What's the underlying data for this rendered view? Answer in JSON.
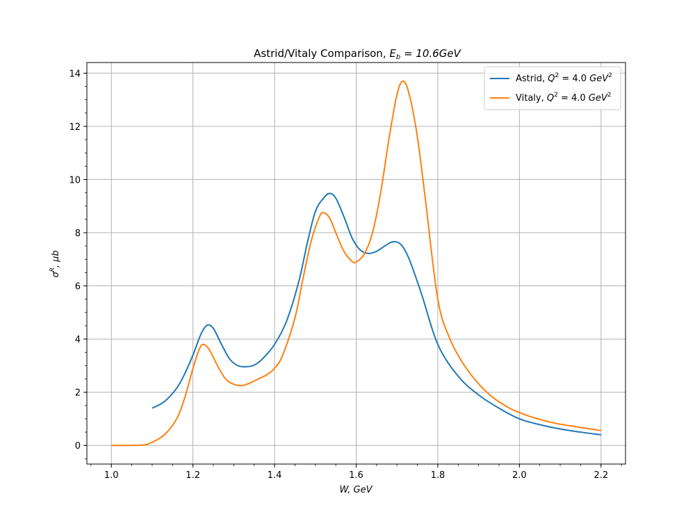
{
  "chart_data": {
    "type": "line",
    "title": "Astrid/Vitaly Comparison, E_b = 10.6GeV",
    "title_parts": {
      "main": "Astrid/Vitaly Comparison, ",
      "sym": "E",
      "sub": "b",
      "rest": " = 10.6GeV"
    },
    "xlabel": "W, GeV",
    "ylabel": "σ^R, μb",
    "xlim": [
      0.94,
      2.26
    ],
    "ylim": [
      -0.7,
      14.4
    ],
    "x_ticks": [
      1.0,
      1.2,
      1.4,
      1.6,
      1.8,
      2.0,
      2.2
    ],
    "x_tick_labels": [
      "1.0",
      "1.2",
      "1.4",
      "1.6",
      "1.8",
      "2.0",
      "2.2"
    ],
    "y_ticks": [
      0,
      2,
      4,
      6,
      8,
      10,
      12,
      14
    ],
    "y_tick_labels": [
      "0",
      "2",
      "4",
      "6",
      "8",
      "10",
      "12",
      "14"
    ],
    "grid": true,
    "legend_position": "top-right",
    "series": [
      {
        "name": "Astrid, Q^2 = 4.0 GeV^2",
        "legend_parts": {
          "pre": "Astrid, ",
          "q": "Q",
          "sup": "2",
          "mid": " = 4.0 ",
          "unit": "GeV",
          "usup": "2"
        },
        "color": "#1f77b4",
        "points": [
          [
            1.1,
            1.4
          ],
          [
            1.13,
            1.65
          ],
          [
            1.16,
            2.15
          ],
          [
            1.18,
            2.7
          ],
          [
            1.2,
            3.4
          ],
          [
            1.22,
            4.2
          ],
          [
            1.235,
            4.52
          ],
          [
            1.25,
            4.4
          ],
          [
            1.27,
            3.8
          ],
          [
            1.29,
            3.25
          ],
          [
            1.31,
            3.0
          ],
          [
            1.33,
            2.96
          ],
          [
            1.35,
            3.02
          ],
          [
            1.37,
            3.25
          ],
          [
            1.4,
            3.8
          ],
          [
            1.43,
            4.7
          ],
          [
            1.46,
            6.2
          ],
          [
            1.48,
            7.6
          ],
          [
            1.5,
            8.8
          ],
          [
            1.52,
            9.3
          ],
          [
            1.535,
            9.48
          ],
          [
            1.55,
            9.3
          ],
          [
            1.57,
            8.6
          ],
          [
            1.59,
            7.8
          ],
          [
            1.61,
            7.35
          ],
          [
            1.63,
            7.22
          ],
          [
            1.65,
            7.3
          ],
          [
            1.67,
            7.5
          ],
          [
            1.69,
            7.66
          ],
          [
            1.71,
            7.55
          ],
          [
            1.73,
            7.0
          ],
          [
            1.76,
            5.7
          ],
          [
            1.8,
            3.8
          ],
          [
            1.85,
            2.6
          ],
          [
            1.9,
            1.9
          ],
          [
            1.95,
            1.4
          ],
          [
            2.0,
            1.0
          ],
          [
            2.05,
            0.78
          ],
          [
            2.1,
            0.62
          ],
          [
            2.15,
            0.5
          ],
          [
            2.2,
            0.4
          ]
        ]
      },
      {
        "name": "Vitaly, Q^2 = 4.0 GeV^2",
        "legend_parts": {
          "pre": "Vitaly, ",
          "q": "Q",
          "sup": "2",
          "mid": " = 4.0 ",
          "unit": "GeV",
          "usup": "2"
        },
        "color": "#ff7f0e",
        "points": [
          [
            1.0,
            0.0
          ],
          [
            1.04,
            0.0
          ],
          [
            1.08,
            0.02
          ],
          [
            1.1,
            0.12
          ],
          [
            1.13,
            0.4
          ],
          [
            1.16,
            1.0
          ],
          [
            1.18,
            1.8
          ],
          [
            1.2,
            2.9
          ],
          [
            1.215,
            3.6
          ],
          [
            1.225,
            3.8
          ],
          [
            1.24,
            3.6
          ],
          [
            1.26,
            3.0
          ],
          [
            1.28,
            2.5
          ],
          [
            1.3,
            2.3
          ],
          [
            1.32,
            2.25
          ],
          [
            1.34,
            2.35
          ],
          [
            1.36,
            2.5
          ],
          [
            1.38,
            2.65
          ],
          [
            1.4,
            2.9
          ],
          [
            1.42,
            3.4
          ],
          [
            1.45,
            4.8
          ],
          [
            1.47,
            6.3
          ],
          [
            1.49,
            7.7
          ],
          [
            1.51,
            8.6
          ],
          [
            1.52,
            8.75
          ],
          [
            1.535,
            8.55
          ],
          [
            1.55,
            8.0
          ],
          [
            1.57,
            7.3
          ],
          [
            1.59,
            6.92
          ],
          [
            1.6,
            6.9
          ],
          [
            1.62,
            7.2
          ],
          [
            1.64,
            8.0
          ],
          [
            1.66,
            9.5
          ],
          [
            1.68,
            11.5
          ],
          [
            1.7,
            13.2
          ],
          [
            1.715,
            13.7
          ],
          [
            1.73,
            13.2
          ],
          [
            1.75,
            11.6
          ],
          [
            1.77,
            9.2
          ],
          [
            1.8,
            5.5
          ],
          [
            1.83,
            4.0
          ],
          [
            1.87,
            2.9
          ],
          [
            1.92,
            2.0
          ],
          [
            1.97,
            1.45
          ],
          [
            2.02,
            1.12
          ],
          [
            2.08,
            0.86
          ],
          [
            2.14,
            0.7
          ],
          [
            2.2,
            0.56
          ]
        ]
      }
    ]
  }
}
